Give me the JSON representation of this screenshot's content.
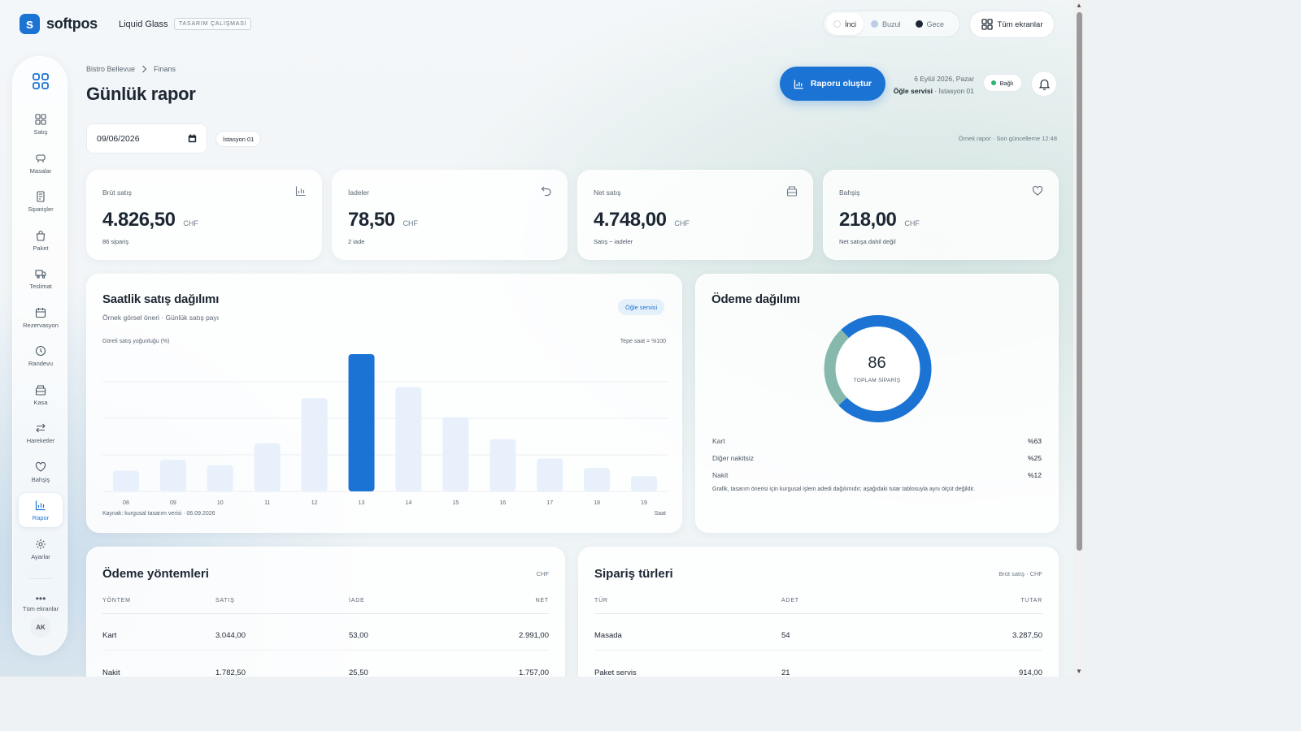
{
  "app": {
    "logo_letter": "s",
    "brand": "softpos",
    "product": "Liquid Glass",
    "tag": "TASARIM ÇALIŞMASI"
  },
  "theme": {
    "options": [
      "İnci",
      "Buzul",
      "Gece"
    ],
    "active": "İnci"
  },
  "top_actions": {
    "all_screens": "Tüm ekranlar"
  },
  "sidebar": {
    "items": [
      {
        "label": "Satış",
        "icon": "grid-icon"
      },
      {
        "label": "Masalar",
        "icon": "table-icon"
      },
      {
        "label": "Siparişler",
        "icon": "receipt-icon"
      },
      {
        "label": "Paket",
        "icon": "bag-icon"
      },
      {
        "label": "Teslimat",
        "icon": "truck-icon"
      },
      {
        "label": "Rezervasyon",
        "icon": "calendar-icon"
      },
      {
        "label": "Randevu",
        "icon": "clock-icon"
      },
      {
        "label": "Kasa",
        "icon": "register-icon"
      },
      {
        "label": "Hareketler",
        "icon": "arrows-icon"
      },
      {
        "label": "Bahşiş",
        "icon": "heart-icon"
      },
      {
        "label": "Rapor",
        "icon": "chart-icon",
        "active": true
      },
      {
        "label": "Ayarlar",
        "icon": "gear-icon"
      }
    ],
    "more_label": "Tüm ekranlar",
    "avatar": "AK"
  },
  "header": {
    "breadcrumb": [
      "Bistro Bellevue",
      "Finans"
    ],
    "title": "Günlük rapor",
    "primary_button": "Raporu oluştur",
    "date_text": "6 Eylül 2026, Pazar",
    "service": "Öğle servisi",
    "station_text": "· İstasyon 01",
    "status": "Bağlı",
    "status_color": "#2bb673"
  },
  "filters": {
    "date_value": "09/06/2026",
    "station_chip": "İstasyon 01",
    "updated": "Örnek rapor · Son güncelleme 12:48"
  },
  "kpis": [
    {
      "label": "Brüt satış",
      "value": "4.826,50",
      "unit": "CHF",
      "sub": "86 sipariş",
      "icon": "bar-chart-icon"
    },
    {
      "label": "İadeler",
      "value": "78,50",
      "unit": "CHF",
      "sub": "2 iade",
      "icon": "undo-icon"
    },
    {
      "label": "Net satış",
      "value": "4.748,00",
      "unit": "CHF",
      "sub": "Satış − iadeler",
      "icon": "register-icon"
    },
    {
      "label": "Bahşiş",
      "value": "218,00",
      "unit": "CHF",
      "sub": "Net satışa dahil değil",
      "icon": "heart-icon"
    }
  ],
  "hourly": {
    "title": "Saatlik satış dağılımı",
    "subtitle": "Örnek görsel öneri · Günlük satış payı",
    "pill": "Öğle servisi",
    "source": "Kaynak: kurgusal tasarım verisi · 06.09.2026"
  },
  "chart_data": {
    "type": "bar",
    "ylabel": "Göreli satış yoğunluğu (%)",
    "xlabel": "Saat",
    "note": "Tepe saat = %100",
    "categories": [
      "08",
      "09",
      "10",
      "11",
      "12",
      "13",
      "14",
      "15",
      "16",
      "17",
      "18",
      "19"
    ],
    "values": [
      15,
      23,
      19,
      35,
      68,
      100,
      76,
      54,
      38,
      24,
      17,
      11
    ],
    "highlight": "13",
    "ylim": [
      0,
      100
    ],
    "colors": {
      "bar": "#e7f0fb",
      "highlight": "#1b73d3"
    }
  },
  "payment_dist": {
    "title": "Ödeme dağılımı",
    "center_value": "86",
    "center_label": "TOPLAM SİPARİŞ",
    "slices": [
      {
        "name": "Kart",
        "pct_label": "%63",
        "value": 63,
        "color": "#1b73d3"
      },
      {
        "name": "Diğer nakitsiz",
        "pct_label": "%25",
        "value": 25,
        "color": "#86b9ac"
      },
      {
        "name": "Nakit",
        "pct_label": "%12",
        "value": 12,
        "color": "#1b73d3"
      }
    ],
    "note": "Grafik, tasarım önerisi için kurgusal işlem adedi dağılımıdır; aşağıdaki tutar tablosuyla aynı ölçüt değildir."
  },
  "payment_methods": {
    "title": "Ödeme yöntemleri",
    "unit": "CHF",
    "columns": [
      "YÖNTEM",
      "SATIŞ",
      "İADE",
      "NET"
    ],
    "rows": [
      [
        "Kart",
        "3.044,00",
        "53,00",
        "2.991,00"
      ],
      [
        "Nakit",
        "1.782,50",
        "25,50",
        "1.757,00"
      ]
    ]
  },
  "order_types": {
    "title": "Sipariş türleri",
    "unit": "Brüt satış · CHF",
    "columns": [
      "TÜR",
      "ADET",
      "TUTAR"
    ],
    "rows": [
      [
        "Masada",
        "54",
        "3.287,50"
      ],
      [
        "Paket servis",
        "21",
        "914,00"
      ]
    ]
  }
}
